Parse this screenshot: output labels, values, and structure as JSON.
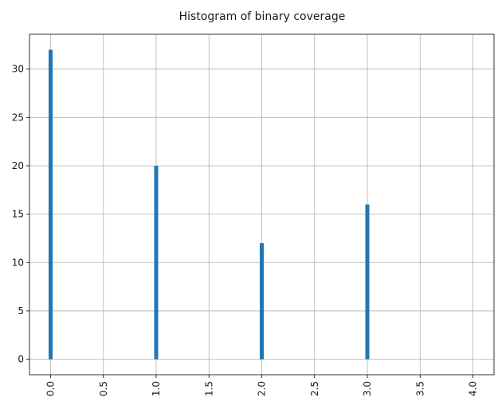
{
  "chart_data": {
    "type": "bar",
    "title": "Histogram of binary coverage",
    "xlabel": "",
    "ylabel": "",
    "x": [
      0,
      1,
      2,
      3
    ],
    "values": [
      32,
      20,
      12,
      16
    ],
    "xlim": [
      -0.2,
      4.2
    ],
    "ylim": [
      -1.6,
      33.6
    ],
    "xticks": [
      "0.0",
      "0.5",
      "1.0",
      "1.5",
      "2.0",
      "2.5",
      "3.0",
      "3.5",
      "4.0"
    ],
    "xtick_values": [
      0,
      0.5,
      1,
      1.5,
      2,
      2.5,
      3,
      3.5,
      4
    ],
    "yticks": [
      "0",
      "5",
      "10",
      "15",
      "20",
      "25",
      "30"
    ],
    "ytick_values": [
      0,
      5,
      10,
      15,
      20,
      25,
      30
    ],
    "grid": true,
    "colors": {
      "bar": "#1f77b4",
      "grid": "#b0b0b0"
    }
  }
}
